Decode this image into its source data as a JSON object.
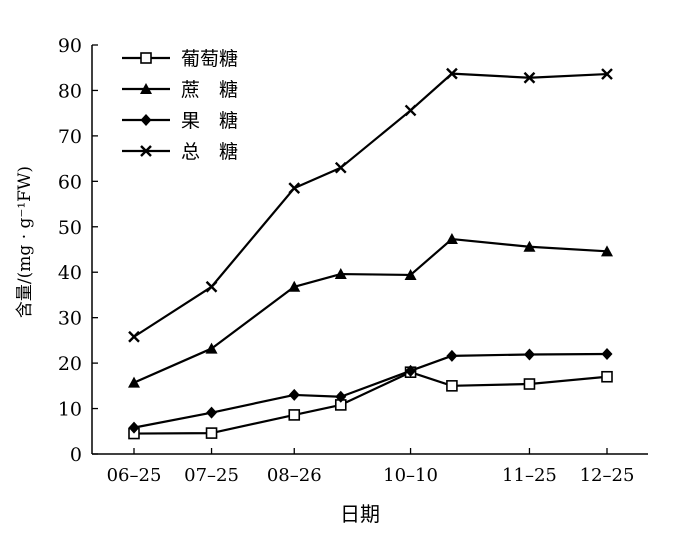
{
  "chart_data": {
    "type": "line",
    "title": "",
    "xlabel": "日期",
    "ylabel": "含量/(mg · g⁻¹FW)",
    "x": [
      "06-25",
      "",
      "07-25",
      "",
      "08-26",
      "",
      "",
      "10-10",
      "",
      "",
      "11-25",
      "",
      "12-25"
    ],
    "tick_labels": [
      "06–25",
      "07–25",
      "08–26",
      "10–10",
      "11–25",
      "12–25"
    ],
    "ylim": [
      0,
      90
    ],
    "yticks": [
      0,
      10,
      20,
      30,
      40,
      50,
      60,
      70,
      80,
      90
    ],
    "grid": false,
    "legend_position": "top-left",
    "series": [
      {
        "name": "葡萄糖",
        "marker": "square",
        "x": [
          "06-25",
          "07-25",
          "08-26",
          "09-13",
          "10-10",
          "10-26",
          "11-25",
          "12-25"
        ],
        "values": [
          4.5,
          4.6,
          8.6,
          10.8,
          18.0,
          15.0,
          15.4,
          17.0
        ]
      },
      {
        "name": "蔗　糖",
        "marker": "triangle",
        "x": [
          "06-25",
          "07-25",
          "08-26",
          "09-13",
          "10-10",
          "10-26",
          "11-25",
          "12-25"
        ],
        "values": [
          15.7,
          23.2,
          36.8,
          39.6,
          39.4,
          47.3,
          45.6,
          44.6
        ]
      },
      {
        "name": "果　糖",
        "marker": "diamond",
        "x": [
          "06-25",
          "07-25",
          "08-26",
          "09-13",
          "10-10",
          "10-26",
          "11-25",
          "12-25"
        ],
        "values": [
          5.8,
          9.1,
          13.0,
          12.6,
          18.3,
          21.6,
          21.9,
          22.0
        ]
      },
      {
        "name": "总　糖",
        "marker": "x",
        "x": [
          "06-25",
          "07-25",
          "08-26",
          "09-13",
          "10-10",
          "10-26",
          "11-25",
          "12-25"
        ],
        "values": [
          25.8,
          36.8,
          58.5,
          63.0,
          75.6,
          83.7,
          82.8,
          83.6
        ]
      }
    ]
  }
}
